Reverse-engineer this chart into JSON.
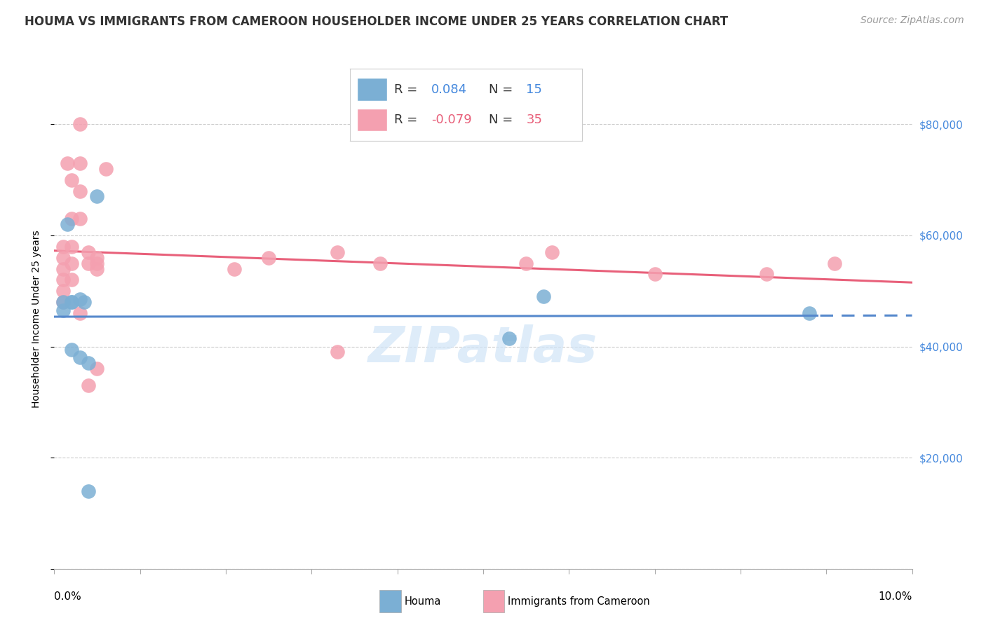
{
  "title": "HOUMA VS IMMIGRANTS FROM CAMEROON HOUSEHOLDER INCOME UNDER 25 YEARS CORRELATION CHART",
  "source": "Source: ZipAtlas.com",
  "ylabel": "Householder Income Under 25 years",
  "xlim": [
    0.0,
    0.1
  ],
  "ylim": [
    0,
    90000
  ],
  "yticks": [
    0,
    20000,
    40000,
    60000,
    80000
  ],
  "ytick_labels": [
    "",
    "$20,000",
    "$40,000",
    "$60,000",
    "$80,000"
  ],
  "houma_R": "0.084",
  "houma_N": "15",
  "cameroon_R": "-0.079",
  "cameroon_N": "35",
  "houma_color": "#7bafd4",
  "cameroon_color": "#f4a0b0",
  "houma_line_color": "#5588cc",
  "cameroon_line_color": "#e8607a",
  "background_color": "#ffffff",
  "grid_color": "#cccccc",
  "title_color": "#333333",
  "source_color": "#999999",
  "right_tick_color": "#4488dd",
  "watermark_color": "#d0e4f7",
  "houma_points_x": [
    0.001,
    0.001,
    0.0015,
    0.002,
    0.002,
    0.002,
    0.003,
    0.003,
    0.0035,
    0.004,
    0.004,
    0.005,
    0.053,
    0.057,
    0.088
  ],
  "houma_points_y": [
    48000,
    46500,
    62000,
    48000,
    39500,
    48000,
    48500,
    38000,
    48000,
    37000,
    14000,
    67000,
    41500,
    49000,
    46000
  ],
  "cameroon_points_x": [
    0.001,
    0.001,
    0.001,
    0.001,
    0.001,
    0.001,
    0.0015,
    0.002,
    0.002,
    0.002,
    0.002,
    0.002,
    0.003,
    0.003,
    0.003,
    0.003,
    0.003,
    0.004,
    0.004,
    0.004,
    0.005,
    0.005,
    0.005,
    0.005,
    0.006,
    0.021,
    0.025,
    0.033,
    0.033,
    0.038,
    0.055,
    0.058,
    0.07,
    0.083,
    0.091
  ],
  "cameroon_points_y": [
    58000,
    56000,
    54000,
    52000,
    50000,
    48000,
    73000,
    70000,
    63000,
    58000,
    55000,
    52000,
    80000,
    73000,
    68000,
    63000,
    46000,
    57000,
    55000,
    33000,
    56000,
    55000,
    54000,
    36000,
    72000,
    54000,
    56000,
    39000,
    57000,
    55000,
    55000,
    57000,
    53000,
    53000,
    55000
  ],
  "title_fontsize": 12,
  "axis_label_fontsize": 10,
  "tick_fontsize": 11,
  "legend_fontsize": 13,
  "source_fontsize": 10
}
